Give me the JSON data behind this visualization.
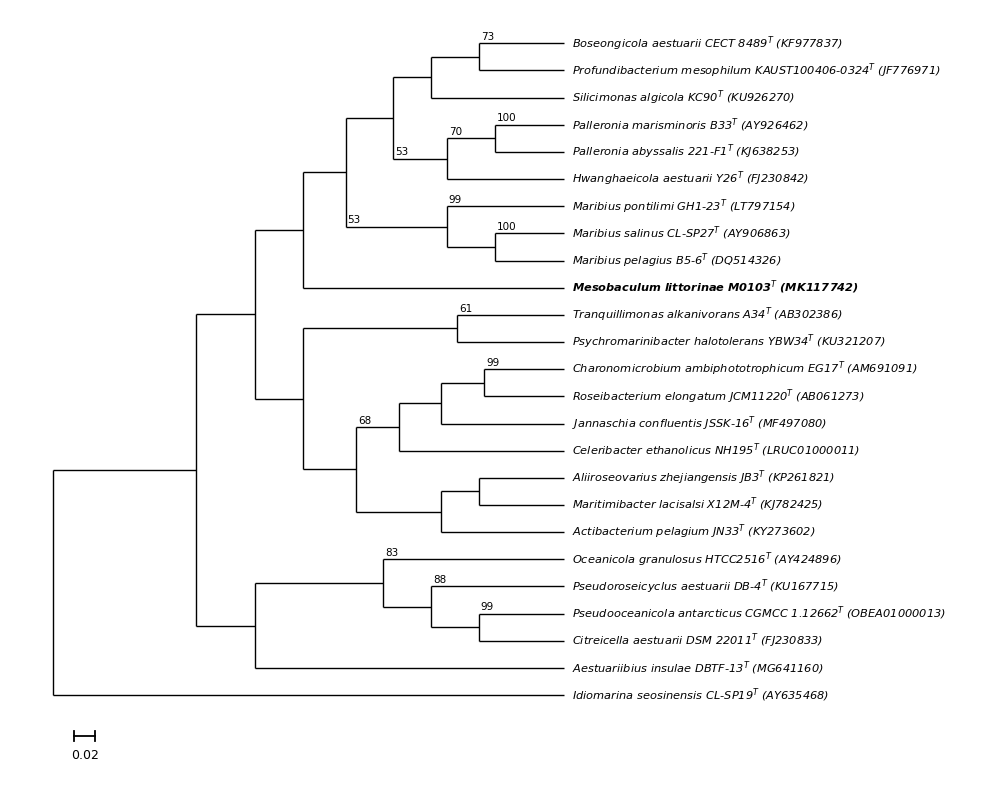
{
  "figsize": [
    10.0,
    7.95
  ],
  "dpi": 100,
  "background": "#ffffff",
  "taxa": [
    "Boseongicola aestuarii CECT 8489$^T$ (KF977837)",
    "Profundibacterium mesophilum KAUST100406-0324$^T$ (JF776971)",
    "Silicimonas algicola KC90$^T$ (KU926270)",
    "Palleronia marisminoris B33$^T$ (AY926462)",
    "Palleronia abyssalis 221-F1$^T$ (KJ638253)",
    "Hwanghaeicola aestuarii Y26$^T$ (FJ230842)",
    "Maribius pontilimi GH1-23$^T$ (LT797154)",
    "Maribius salinus CL-SP27$^T$ (AY906863)",
    "Maribius pelagius B5-6$^T$ (DQ514326)",
    "Mesobaculum littorinae M0103$^T$ (MK117742)",
    "Tranquillimonas alkanivorans A34$^T$ (AB302386)",
    "Psychromarinibacter halotolerans YBW34$^T$ (KU321207)",
    "Charonomicrobium ambiphototrophicum EG17$^T$ (AM691091)",
    "Roseibacterium elongatum JCM11220$^T$ (AB061273)",
    "Jannaschia confluentis JSSK-16$^T$ (MF497080)",
    "Celeribacter ethanolicus NH195$^T$ (LRUC01000011)",
    "Aliiroseovarius zhejiangensis JB3$^T$ (KP261821)",
    "Maritimibacter lacisalsi X12M-4$^T$ (KJ782425)",
    "Actibacterium pelagium JN33$^T$ (KY273602)",
    "Oceanicola granulosus HTCC2516$^T$ (AY424896)",
    "Pseudoroseicyclus aestuarii DB-4$^T$ (KU167715)",
    "Pseudooceanicola antarcticus CGMCC 1.12662$^T$ (OBEA01000013)",
    "Citreicella aestuarii DSM 22011$^T$ (FJ230833)",
    "Aestuariibius insulae DBTF-13$^T$ (MG641160)",
    "Idiomarina seosinensis CL-SP19$^T$ (AY635468)"
  ],
  "bold_taxon_idx": 9,
  "bootstrap_values": {
    "n_bosprof": "73",
    "n_pall": "100",
    "n_pallhwang": "70",
    "n_upper1": "53",
    "n_marsp": "100",
    "n_mar3": "99",
    "n_upper2": "53",
    "n_tranpsych": "61",
    "n_charrosi": "99",
    "n_lower1": "68",
    "n_ocean_group": "83",
    "n_pseudoall": "88",
    "n_pseudocit": "99"
  },
  "scale_bar_value": 0.02,
  "scale_bar_label": "0.02"
}
